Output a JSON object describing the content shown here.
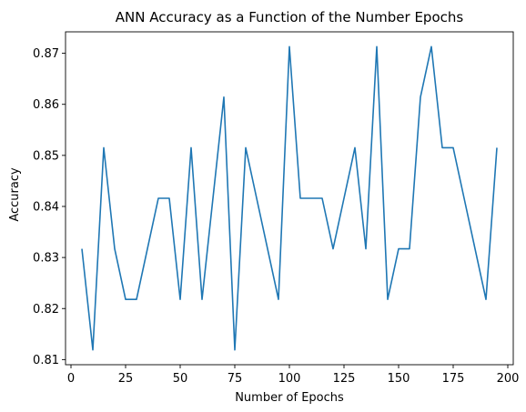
{
  "chart_data": {
    "type": "line",
    "title": "ANN Accuracy as a Function of the Number Epochs",
    "xlabel": "Number of Epochs",
    "ylabel": "Accuracy",
    "xlim": [
      -2.5,
      202.5
    ],
    "ylim": [
      0.809,
      0.8742
    ],
    "xticks": [
      0,
      25,
      50,
      75,
      100,
      125,
      150,
      175,
      200
    ],
    "xtick_labels": [
      "0",
      "25",
      "50",
      "75",
      "100",
      "125",
      "150",
      "175",
      "200"
    ],
    "yticks": [
      0.81,
      0.82,
      0.83,
      0.84,
      0.85,
      0.86,
      0.87
    ],
    "ytick_labels": [
      "0.81",
      "0.82",
      "0.83",
      "0.84",
      "0.85",
      "0.86",
      "0.87"
    ],
    "grid": false,
    "line_color": "#1f77b4",
    "series": [
      {
        "x": [
          5,
          10,
          15,
          20,
          25,
          30,
          35,
          40,
          45,
          50,
          55,
          60,
          65,
          70,
          75,
          80,
          85,
          90,
          95,
          100,
          105,
          110,
          115,
          120,
          125,
          130,
          135,
          140,
          145,
          150,
          155,
          160,
          165,
          170,
          175,
          180,
          185,
          190,
          195
        ],
        "y": [
          0.8317,
          0.8119,
          0.8515,
          0.8317,
          0.8218,
          0.8218,
          0.8317,
          0.8416,
          0.8416,
          0.8218,
          0.8515,
          0.8218,
          0.8416,
          0.8614,
          0.8119,
          0.8515,
          0.8416,
          0.8317,
          0.8218,
          0.8713,
          0.8416,
          0.8416,
          0.8416,
          0.8317,
          0.8416,
          0.8515,
          0.8317,
          0.8713,
          0.8218,
          0.8317,
          0.8317,
          0.8614,
          0.8713,
          0.8515,
          0.8515,
          0.8416,
          0.8317,
          0.8218,
          0.8515
        ]
      }
    ]
  }
}
